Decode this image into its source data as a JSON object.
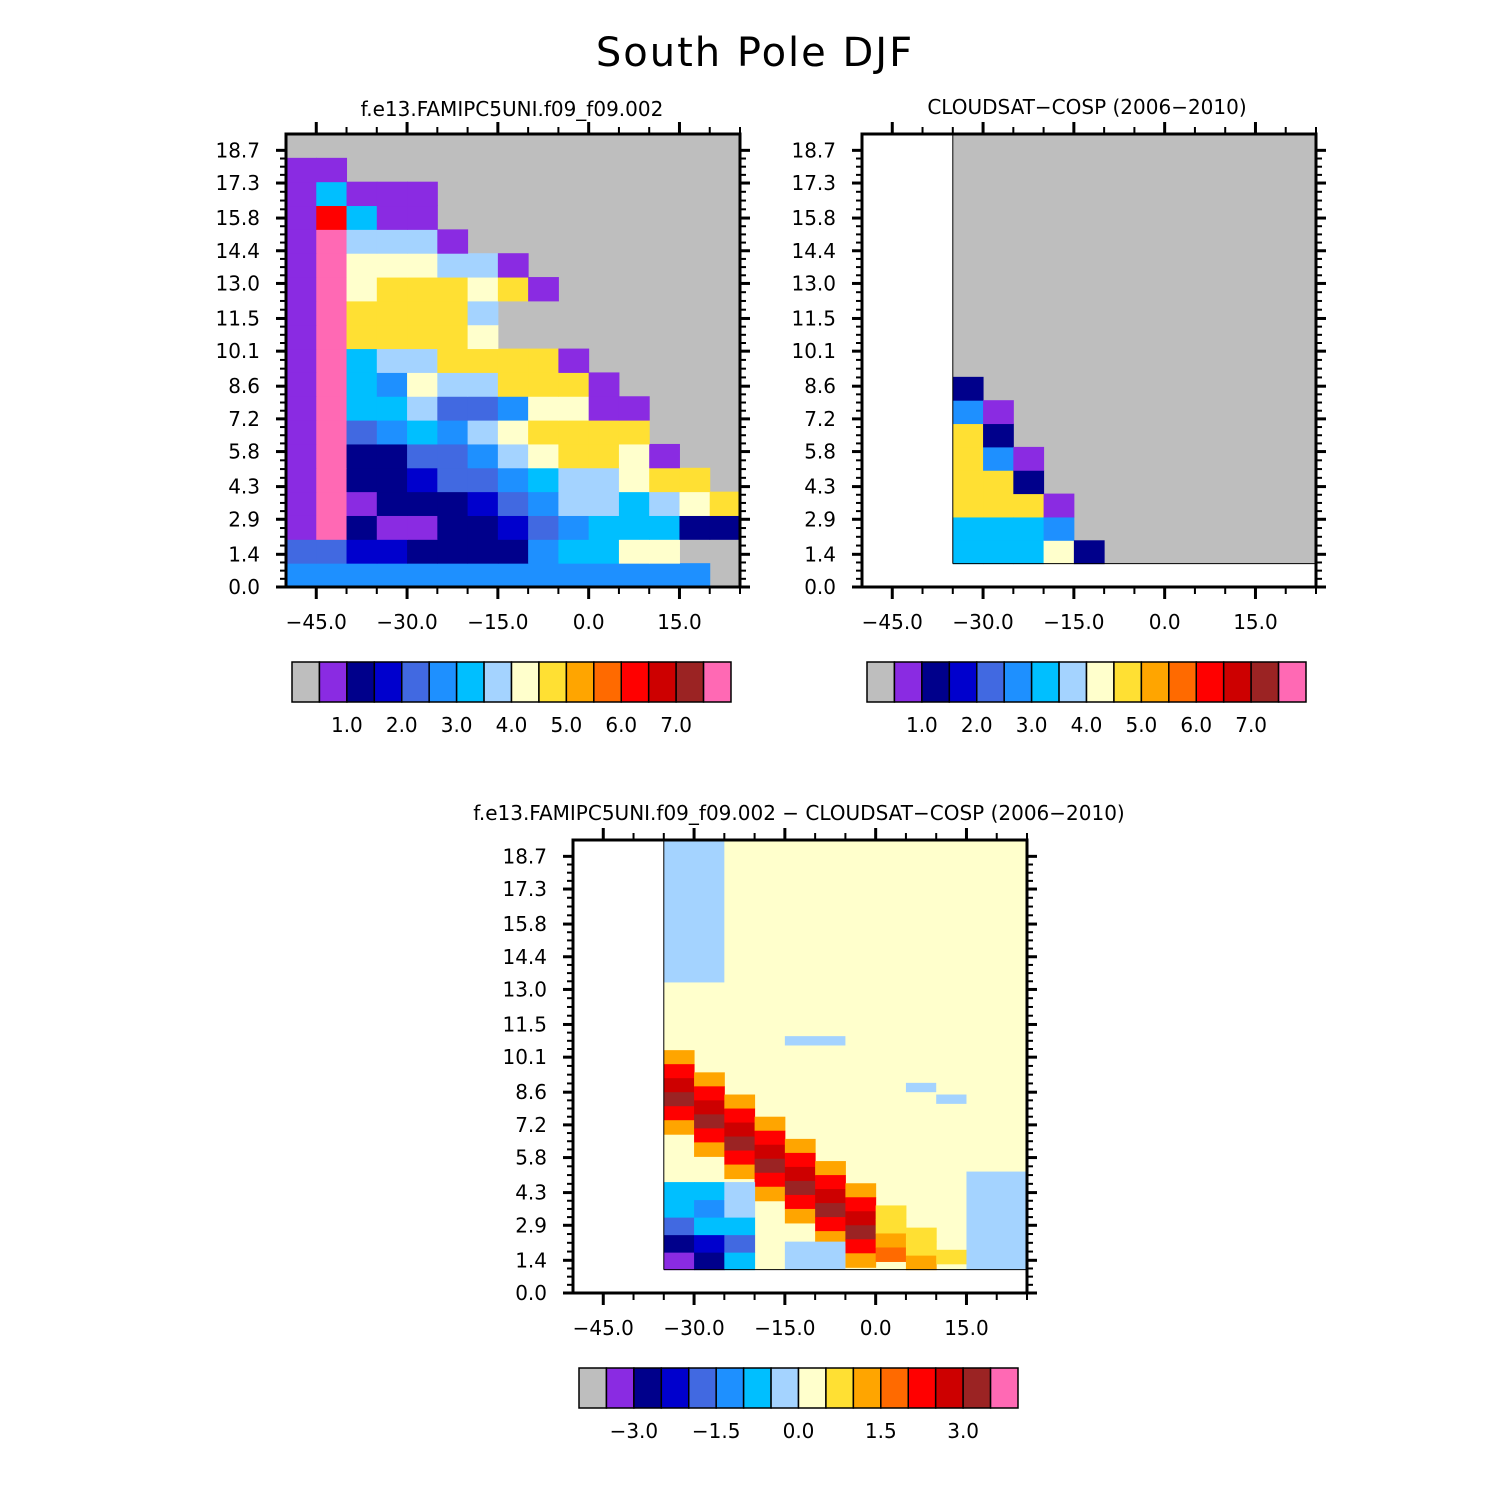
{
  "figure": {
    "title": "South Pole DJF"
  },
  "colors": {
    "palette_abs": [
      "#bebebe",
      "#8a2be2",
      "#00008b",
      "#0000cd",
      "#4169e1",
      "#1e90ff",
      "#00bfff",
      "#a4d3ff",
      "#ffffcc",
      "#ffe033",
      "#ffa500",
      "#ff6a00",
      "#ff0000",
      "#cd0000",
      "#9b2323",
      "#ff69b4"
    ],
    "palette_diff": [
      "#bebebe",
      "#8a2be2",
      "#00008b",
      "#0000cd",
      "#4169e1",
      "#1e90ff",
      "#00bfff",
      "#a4d3ff",
      "#ffffcc",
      "#ffe033",
      "#ffa500",
      "#ff6a00",
      "#ff0000",
      "#cd0000",
      "#9b2323",
      "#ff69b4"
    ],
    "missing": "#bebebe"
  },
  "chart_data": [
    {
      "type": "heatmap",
      "title": "f.e13.FAMIPC5UNI.f09_f09.002",
      "x_ticklabels": [
        "−45.0",
        "−30.0",
        "−15.0",
        "0.0",
        "15.0"
      ],
      "y_ticklabels": [
        "0.0",
        "1.4",
        "2.9",
        "4.3",
        "5.8",
        "7.2",
        "8.6",
        "10.1",
        "11.5",
        "13.0",
        "14.4",
        "15.8",
        "17.3",
        "18.7"
      ],
      "colorbar": {
        "labels": [
          "1.0",
          "2.0",
          "3.0",
          "4.0",
          "5.0",
          "6.0",
          "7.0"
        ],
        "n_boxes": 16
      },
      "grid": {
        "x0": -50,
        "x1": 25,
        "dx": 5,
        "y0": 0,
        "y1": 19.4,
        "rows_from_bottom": [
          "555555555555550000",
          "443322225668800000",
          "1F21122345666220000",
          "1F1222345776789000",
          "1F2234456778990000",
          "1F224457899810000",
          "1F456578999900000",
          "1F66744588110000",
          "1F6587799910000",
          "1F67799991000000",
          "1F99998000000000",
          "1F99997000000000",
          "1F89998910000000",
          "1F88877100000000",
          "1F7771000000000",
          "1C611000000000000",
          "16111000000000000",
          "1100000000000000",
          "00000000000000000"
        ]
      }
    },
    {
      "type": "heatmap",
      "title": "CLOUDSAT−COSP (2006−2010)",
      "x_ticklabels": [
        "−45.0",
        "−30.0",
        "−15.0",
        "0.0",
        "15.0"
      ],
      "y_ticklabels": [
        "0.0",
        "1.4",
        "2.9",
        "4.3",
        "5.8",
        "7.2",
        "8.6",
        "10.1",
        "11.5",
        "13.0",
        "14.4",
        "15.8",
        "17.3",
        "18.7"
      ],
      "colorbar": {
        "labels": [
          "1.0",
          "2.0",
          "3.0",
          "4.0",
          "5.0",
          "6.0",
          "7.0"
        ],
        "n_boxes": 16
      },
      "grid": {
        "x0": -35,
        "x1": 25,
        "dx": 5,
        "y0": 1,
        "y1": 19.4
      }
    },
    {
      "type": "heatmap",
      "title": "f.e13.FAMIPC5UNI.f09_f09.002 − CLOUDSAT−COSP (2006−2010)",
      "x_ticklabels": [
        "−45.0",
        "−30.0",
        "−15.0",
        "0.0",
        "15.0"
      ],
      "y_ticklabels": [
        "0.0",
        "1.4",
        "2.9",
        "4.3",
        "5.8",
        "7.2",
        "8.6",
        "10.1",
        "11.5",
        "13.0",
        "14.4",
        "15.8",
        "17.3",
        "18.7"
      ],
      "colorbar": {
        "labels": [
          "−3.0",
          "−1.5",
          "0.0",
          "1.5",
          "3.0"
        ],
        "n_boxes": 16
      },
      "grid": {
        "x0": -35,
        "x1": 25,
        "dx": 5,
        "y0": 1,
        "y1": 19.4
      }
    }
  ]
}
